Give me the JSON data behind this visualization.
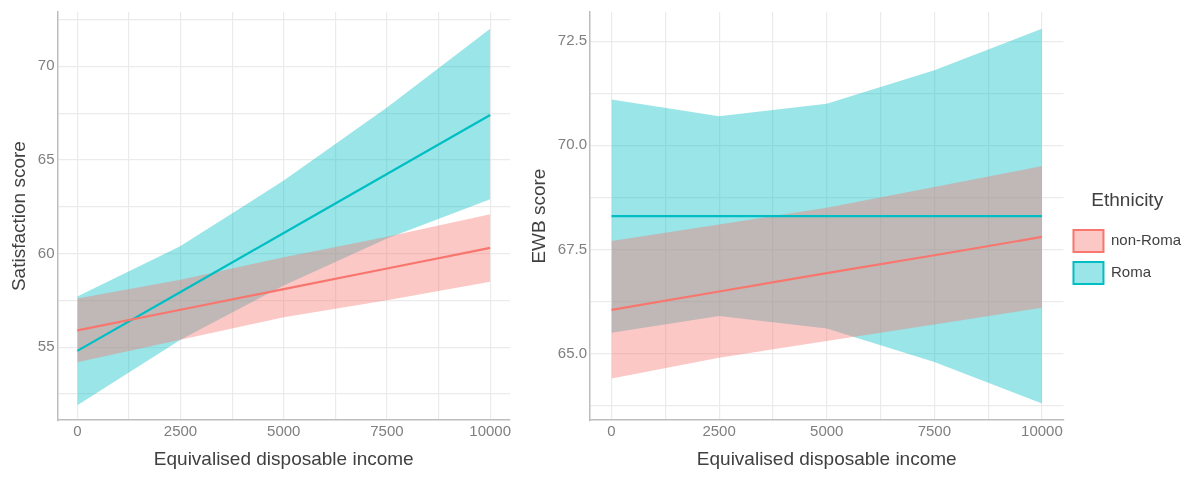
{
  "chart_data": [
    {
      "type": "line",
      "xlabel": "Equivalised disposable income",
      "ylabel": "Satisfaction score",
      "x": [
        0,
        2500,
        5000,
        7500,
        10000
      ],
      "xlim": [
        -480,
        10480
      ],
      "ylim": [
        51.1,
        72.9
      ],
      "xticks": [
        0,
        {
          "value": 1250,
          "label": null
        },
        2500,
        {
          "value": 3750,
          "label": null
        },
        5000,
        {
          "value": 6250,
          "label": null
        },
        7500,
        {
          "value": 8750,
          "label": null
        },
        10000
      ],
      "yticks": [
        {
          "value": 52.5,
          "label": null
        },
        55,
        {
          "value": 57.5,
          "label": null
        },
        60,
        {
          "value": 62.5,
          "label": null
        },
        65,
        {
          "value": 67.5,
          "label": null
        },
        70,
        {
          "value": 72.5,
          "label": null
        }
      ],
      "grid": true,
      "legend": false,
      "marker": "none",
      "line_style": "solid",
      "series": [
        {
          "color": "#f8766d",
          "values": [
            55.9,
            57.0,
            58.1,
            59.2,
            60.3
          ],
          "lower": [
            54.2,
            55.4,
            56.6,
            57.5,
            58.5
          ],
          "upper": [
            57.6,
            58.6,
            59.8,
            60.9,
            62.1
          ]
        },
        {
          "color": "#00bfc4",
          "values": [
            54.8,
            57.95,
            61.1,
            64.25,
            67.4
          ],
          "lower": [
            51.9,
            55.4,
            58.3,
            60.8,
            62.9
          ],
          "upper": [
            57.7,
            60.4,
            63.9,
            67.8,
            72.0
          ]
        }
      ]
    },
    {
      "type": "line",
      "xlabel": "Equivalised disposable income",
      "ylabel": "EWB score",
      "legend_title": "Ethnicity",
      "x": [
        0,
        2500,
        5000,
        7500,
        10000
      ],
      "xlim": [
        -500,
        10500
      ],
      "ylim": [
        63.4,
        73.2
      ],
      "xticks": [
        0,
        {
          "value": 1250,
          "label": null
        },
        2500,
        {
          "value": 3750,
          "label": null
        },
        5000,
        {
          "value": 6250,
          "label": null
        },
        7500,
        {
          "value": 8750,
          "label": null
        },
        10000
      ],
      "yticks": [
        {
          "value": 63.75,
          "label": null
        },
        {
          "value": 65,
          "label": "65.0"
        },
        {
          "value": 66.25,
          "label": null
        },
        67.5,
        {
          "value": 68.75,
          "label": null
        },
        {
          "value": 70,
          "label": "70.0"
        },
        {
          "value": 71.25,
          "label": null
        },
        72.5
      ],
      "grid": true,
      "legend": "right",
      "marker": "none",
      "line_style": "solid",
      "series": [
        {
          "name": "non-Roma",
          "color": "#f8766d",
          "values": [
            66.05,
            66.49,
            66.93,
            67.36,
            67.8
          ],
          "lower": [
            64.4,
            64.9,
            65.3,
            65.7,
            66.1
          ],
          "upper": [
            67.7,
            68.1,
            68.5,
            69.0,
            69.5
          ]
        },
        {
          "name": "Roma",
          "color": "#00bfc4",
          "values": [
            68.3,
            68.3,
            68.3,
            68.3,
            68.3
          ],
          "lower": [
            65.5,
            65.9,
            65.6,
            64.8,
            63.8
          ],
          "upper": [
            71.1,
            70.7,
            71.0,
            71.8,
            72.8
          ]
        }
      ]
    }
  ]
}
